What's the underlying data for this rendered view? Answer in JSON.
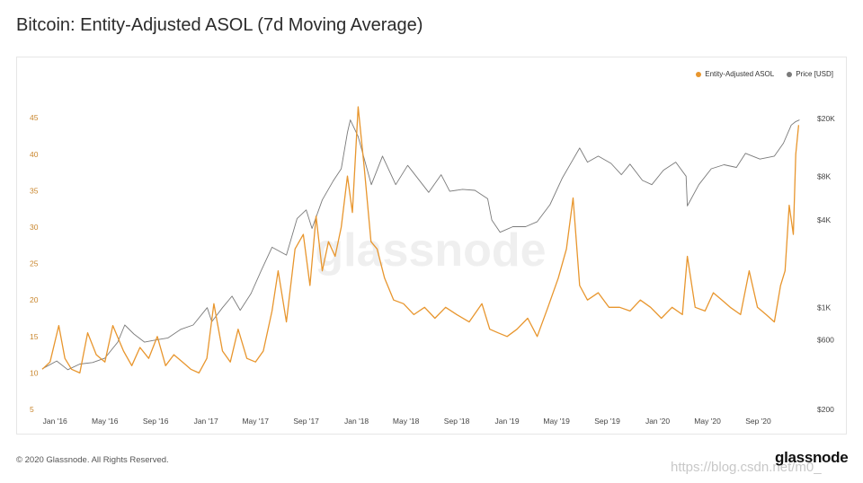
{
  "title": "Bitcoin: Entity-Adjusted ASOL (7d Moving Average)",
  "footer": "© 2020 Glassnode. All Rights Reserved.",
  "brand": "glassnode",
  "chart_watermark": "glassnode",
  "image_watermark": "https://blog.csdn.net/m0_",
  "legend": {
    "asol_label": "Entity-Adjusted ASOL",
    "price_label": "Price [USD]"
  },
  "colors": {
    "asol": "#e8962e",
    "price": "#7a7a7a",
    "left_axis_text": "#c9862d",
    "right_axis_text": "#444444"
  },
  "chart_data": {
    "type": "line",
    "title": "Bitcoin: Entity-Adjusted ASOL (7d Moving Average)",
    "x_ticks": [
      "Jan '16",
      "May '16",
      "Sep '16",
      "Jan '17",
      "May '17",
      "Sep '17",
      "Jan '18",
      "May '18",
      "Sep '18",
      "Jan '19",
      "May '19",
      "Sep '19",
      "Jan '20",
      "May '20",
      "Sep '20"
    ],
    "x_range": [
      "2015-12-01",
      "2020-12-31"
    ],
    "y_left": {
      "label": "Entity-Adjusted ASOL",
      "ticks": [
        5,
        10,
        15,
        20,
        25,
        30,
        35,
        40,
        45
      ],
      "range": [
        5,
        46.5
      ]
    },
    "y_right": {
      "label": "Price [USD]",
      "scale": "log",
      "ticks": [
        200,
        600,
        1000,
        4000,
        8000,
        20000
      ],
      "tick_labels": [
        "$200",
        "$600",
        "$1K",
        "$4K",
        "$8K",
        "$20K"
      ],
      "range": [
        200,
        24000
      ]
    },
    "legend_position": "top-right",
    "grid": false,
    "series": [
      {
        "name": "Entity-Adjusted ASOL",
        "axis": "left",
        "x": [
          "2015-12-01",
          "2015-12-20",
          "2016-01-10",
          "2016-01-25",
          "2016-02-10",
          "2016-03-01",
          "2016-03-20",
          "2016-04-10",
          "2016-05-01",
          "2016-05-20",
          "2016-06-15",
          "2016-07-05",
          "2016-07-25",
          "2016-08-15",
          "2016-09-05",
          "2016-09-25",
          "2016-10-15",
          "2016-11-05",
          "2016-11-25",
          "2016-12-15",
          "2017-01-03",
          "2017-01-20",
          "2017-02-10",
          "2017-03-01",
          "2017-03-20",
          "2017-04-10",
          "2017-05-01",
          "2017-05-20",
          "2017-06-10",
          "2017-06-25",
          "2017-07-15",
          "2017-08-05",
          "2017-08-25",
          "2017-09-10",
          "2017-09-25",
          "2017-10-10",
          "2017-10-25",
          "2017-11-10",
          "2017-11-25",
          "2017-12-10",
          "2017-12-22",
          "2018-01-05",
          "2018-01-20",
          "2018-02-05",
          "2018-02-20",
          "2018-03-10",
          "2018-04-01",
          "2018-04-25",
          "2018-05-20",
          "2018-06-15",
          "2018-07-10",
          "2018-08-05",
          "2018-09-01",
          "2018-10-01",
          "2018-11-01",
          "2018-11-20",
          "2018-12-10",
          "2019-01-01",
          "2019-01-25",
          "2019-02-20",
          "2019-03-15",
          "2019-04-10",
          "2019-05-05",
          "2019-05-25",
          "2019-06-10",
          "2019-06-26",
          "2019-07-15",
          "2019-08-10",
          "2019-09-05",
          "2019-10-01",
          "2019-10-26",
          "2019-11-20",
          "2019-12-15",
          "2020-01-10",
          "2020-02-05",
          "2020-03-01",
          "2020-03-13",
          "2020-04-01",
          "2020-04-25",
          "2020-05-15",
          "2020-06-05",
          "2020-06-25",
          "2020-07-20",
          "2020-08-10",
          "2020-08-30",
          "2020-09-20",
          "2020-10-10",
          "2020-10-25",
          "2020-11-05",
          "2020-11-15",
          "2020-11-25",
          "2020-12-01",
          "2020-12-08"
        ],
        "values": [
          10.5,
          11.5,
          16.5,
          12,
          10.5,
          10,
          15.5,
          12.5,
          11.5,
          16.5,
          13,
          11,
          13.5,
          12,
          15,
          11,
          12.5,
          11.5,
          10.5,
          10,
          12,
          19.5,
          13,
          11.5,
          16,
          12,
          11.5,
          13,
          18.5,
          24,
          17,
          27,
          29,
          22,
          31.5,
          24,
          28,
          26,
          30,
          37,
          32,
          46.5,
          38,
          28,
          27,
          23,
          20,
          19.5,
          18,
          19,
          17.5,
          19,
          18,
          17,
          19.5,
          16,
          15.5,
          15,
          16,
          17.5,
          15,
          19,
          23,
          27,
          34,
          22,
          20,
          21,
          19,
          19,
          18.5,
          20,
          19,
          17.5,
          19,
          18,
          26,
          19,
          18.5,
          21,
          20,
          19,
          18,
          24,
          19,
          18,
          17,
          22,
          24,
          33,
          29,
          40,
          44
        ]
      },
      {
        "name": "Price [USD]",
        "axis": "right",
        "x": [
          "2015-12-01",
          "2016-01-05",
          "2016-02-01",
          "2016-03-01",
          "2016-04-01",
          "2016-05-01",
          "2016-06-01",
          "2016-06-18",
          "2016-07-10",
          "2016-08-05",
          "2016-09-01",
          "2016-10-01",
          "2016-11-01",
          "2016-12-01",
          "2017-01-04",
          "2017-01-15",
          "2017-02-10",
          "2017-03-05",
          "2017-03-25",
          "2017-04-20",
          "2017-05-15",
          "2017-06-10",
          "2017-07-15",
          "2017-08-10",
          "2017-09-01",
          "2017-09-15",
          "2017-10-10",
          "2017-11-05",
          "2017-11-25",
          "2017-12-10",
          "2017-12-17",
          "2018-01-05",
          "2018-02-06",
          "2018-03-05",
          "2018-04-06",
          "2018-05-05",
          "2018-06-25",
          "2018-07-25",
          "2018-08-15",
          "2018-09-15",
          "2018-10-15",
          "2018-11-15",
          "2018-11-25",
          "2018-12-15",
          "2019-01-15",
          "2019-02-15",
          "2019-03-15",
          "2019-04-15",
          "2019-05-15",
          "2019-06-26",
          "2019-07-15",
          "2019-08-10",
          "2019-09-10",
          "2019-10-05",
          "2019-10-26",
          "2019-11-25",
          "2019-12-18",
          "2020-01-15",
          "2020-02-14",
          "2020-03-10",
          "2020-03-13",
          "2020-04-10",
          "2020-05-10",
          "2020-06-10",
          "2020-07-10",
          "2020-08-01",
          "2020-09-05",
          "2020-10-10",
          "2020-11-01",
          "2020-11-20",
          "2020-12-01",
          "2020-12-10"
        ],
        "values": [
          380,
          430,
          375,
          410,
          420,
          450,
          580,
          760,
          660,
          580,
          600,
          620,
          710,
          760,
          1000,
          800,
          1000,
          1200,
          960,
          1250,
          1800,
          2600,
          2300,
          4100,
          4700,
          3500,
          5500,
          7400,
          9000,
          16000,
          19500,
          15000,
          7000,
          11000,
          7000,
          9500,
          6200,
          8200,
          6300,
          6500,
          6400,
          5600,
          4000,
          3300,
          3600,
          3600,
          3900,
          5100,
          7800,
          12500,
          10000,
          11000,
          9800,
          8200,
          9700,
          7500,
          7000,
          8800,
          10000,
          8000,
          5000,
          7000,
          9000,
          9600,
          9200,
          11500,
          10500,
          11000,
          13500,
          18000,
          19000,
          19500
        ]
      }
    ]
  }
}
